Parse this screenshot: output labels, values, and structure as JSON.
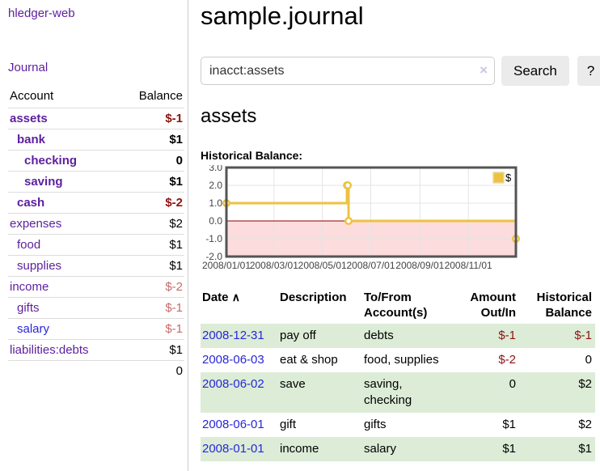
{
  "sidebar": {
    "app_title": "hledger-web",
    "journal_link": "Journal",
    "table": {
      "headers": {
        "account": "Account",
        "balance": "Balance"
      },
      "rows": [
        {
          "name": "assets",
          "balance": "$-1",
          "indent": 0,
          "bold": true,
          "neg": true
        },
        {
          "name": "bank",
          "balance": "$1",
          "indent": 1,
          "bold": true,
          "neg": false
        },
        {
          "name": "checking",
          "balance": "0",
          "indent": 2,
          "bold": true,
          "neg": false
        },
        {
          "name": "saving",
          "balance": "$1",
          "indent": 2,
          "bold": true,
          "neg": false
        },
        {
          "name": "cash",
          "balance": "$-2",
          "indent": 1,
          "bold": true,
          "neg": true
        },
        {
          "name": "expenses",
          "balance": "$2",
          "indent": 0,
          "bold": false,
          "neg": false
        },
        {
          "name": "food",
          "balance": "$1",
          "indent": 1,
          "bold": false,
          "neg": false
        },
        {
          "name": "supplies",
          "balance": "$1",
          "indent": 1,
          "bold": false,
          "neg": false
        },
        {
          "name": "income",
          "balance": "$-2",
          "indent": 0,
          "bold": false,
          "neg": true
        },
        {
          "name": "gifts",
          "balance": "$-1",
          "indent": 1,
          "bold": false,
          "neg": true
        },
        {
          "name": "salary",
          "balance": "$-1",
          "indent": 1,
          "bold": false,
          "neg": true,
          "link": "blue"
        },
        {
          "name": "liabilities:debts",
          "balance": "$1",
          "indent": 0,
          "bold": false,
          "neg": false
        }
      ],
      "total": "0"
    }
  },
  "main": {
    "title": "sample.journal",
    "search": {
      "value": "inacct:assets",
      "clear_icon": "×",
      "button_label": "Search",
      "help_label": "?"
    },
    "account_heading": "assets",
    "chart_label": "Historical Balance:",
    "register": {
      "headers": {
        "date": "Date",
        "sort_arrow": "∧",
        "description": "Description",
        "tofrom": "To/From Account(s)",
        "amount": "Amount Out/In",
        "balance": "Historical Balance"
      },
      "rows": [
        {
          "date": "2008-12-31",
          "description": "pay off",
          "accounts": "debts",
          "amount": "$-1",
          "balance": "$-1",
          "amount_neg": true,
          "balance_neg": true
        },
        {
          "date": "2008-06-03",
          "description": "eat & shop",
          "accounts": "food, supplies",
          "amount": "$-2",
          "balance": "0",
          "amount_neg": true,
          "balance_neg": false
        },
        {
          "date": "2008-06-02",
          "description": "save",
          "accounts": "saving, checking",
          "amount": "0",
          "balance": "$2",
          "amount_neg": false,
          "balance_neg": false
        },
        {
          "date": "2008-06-01",
          "description": "gift",
          "accounts": "gifts",
          "amount": "$1",
          "balance": "$2",
          "amount_neg": false,
          "balance_neg": false
        },
        {
          "date": "2008-01-01",
          "description": "income",
          "accounts": "salary",
          "amount": "$1",
          "balance": "$1",
          "amount_neg": false,
          "balance_neg": false
        }
      ]
    }
  },
  "chart_data": {
    "type": "line",
    "step": true,
    "title": "Historical Balance",
    "legend": [
      {
        "label": "$",
        "color": "#edc240"
      }
    ],
    "xlim": [
      0,
      365
    ],
    "ylim": [
      -2,
      3
    ],
    "x_ticks": [
      {
        "d": 0,
        "label": "2008/01/01"
      },
      {
        "d": 60,
        "label": "2008/03/01"
      },
      {
        "d": 121,
        "label": "2008/05/01"
      },
      {
        "d": 182,
        "label": "2008/07/01"
      },
      {
        "d": 244,
        "label": "2008/09/01"
      },
      {
        "d": 305,
        "label": "2008/11/01"
      }
    ],
    "y_ticks": [
      {
        "v": 3,
        "label": "3.0"
      },
      {
        "v": 2,
        "label": "2.0"
      },
      {
        "v": 1,
        "label": "1.0"
      },
      {
        "v": 0,
        "label": "0.0"
      },
      {
        "v": -1,
        "label": "-1.0"
      },
      {
        "v": -2,
        "label": "-2.0"
      }
    ],
    "points": [
      {
        "date": "2008-01-01",
        "d": 0,
        "v": 1
      },
      {
        "date": "2008-06-01",
        "d": 152,
        "v": 2
      },
      {
        "date": "2008-06-02",
        "d": 153,
        "v": 2
      },
      {
        "date": "2008-06-03",
        "d": 154,
        "v": 0
      },
      {
        "date": "2008-12-31",
        "d": 365,
        "v": -1
      }
    ],
    "colors": {
      "series": "#edc240",
      "marker_fill": "#ffffff",
      "negative_region": "#fcdcdc",
      "zero_line": "#8b0000",
      "grid": "#e4e4e4",
      "plot_border": "#545454",
      "tick_text": "#444444"
    }
  }
}
